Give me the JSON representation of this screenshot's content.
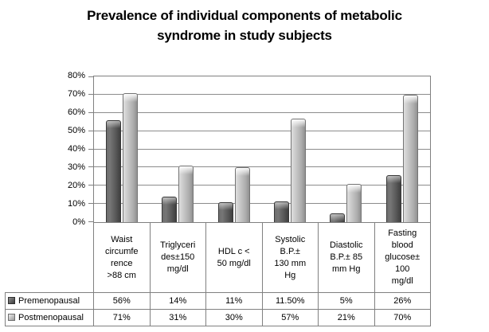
{
  "title_display": "Prevalence of individual components of metabolic\nsyndrome in study subjects",
  "chart_data": {
    "type": "bar",
    "title": "Prevalence of individual components of metabolic syndrome in study subjects",
    "categories": [
      "Waist circumference >88 cm",
      "Triglycerides±150 mg/dl",
      "HDL c < 50 mg/dl",
      "Systolic B.P.± 130 mm Hg",
      "Diastolic B.P.± 85 mm Hg",
      "Fasting blood glucose± 100 mg/dl"
    ],
    "categories_display": [
      "Waist\ncircumfe\nrence\n>88 cm",
      "Triglyceri\ndes±150\nmg/dl",
      "HDL c <\n50 mg/dl",
      "Systolic\nB.P.±\n130 mm\nHg",
      "Diastolic\nB.P.± 85\nmm Hg",
      "Fasting\nblood\nglucose±\n100\nmg/dl"
    ],
    "series": [
      {
        "name": "Premenopausal",
        "values": [
          56,
          14,
          11,
          11.5,
          5,
          26
        ],
        "labels": [
          "56%",
          "14%",
          "11%",
          "11.50%",
          "5%",
          "26%"
        ],
        "color": "#595959"
      },
      {
        "name": "Postmenopausal",
        "values": [
          71,
          31,
          30,
          57,
          21,
          70
        ],
        "labels": [
          "71%",
          "31%",
          "30%",
          "57%",
          "21%",
          "70%"
        ],
        "color": "#bfbfbf"
      }
    ],
    "xlabel": "",
    "ylabel": "",
    "ylim": [
      0,
      80
    ],
    "ytick_step": 10,
    "yticks": [
      "80%",
      "70%",
      "60%",
      "50%",
      "40%",
      "30%",
      "20%",
      "10%",
      "0%"
    ],
    "grid": true,
    "legend_position": "data-table-left",
    "gridline_color": "#8c8c8c",
    "border_color": "#808080"
  }
}
